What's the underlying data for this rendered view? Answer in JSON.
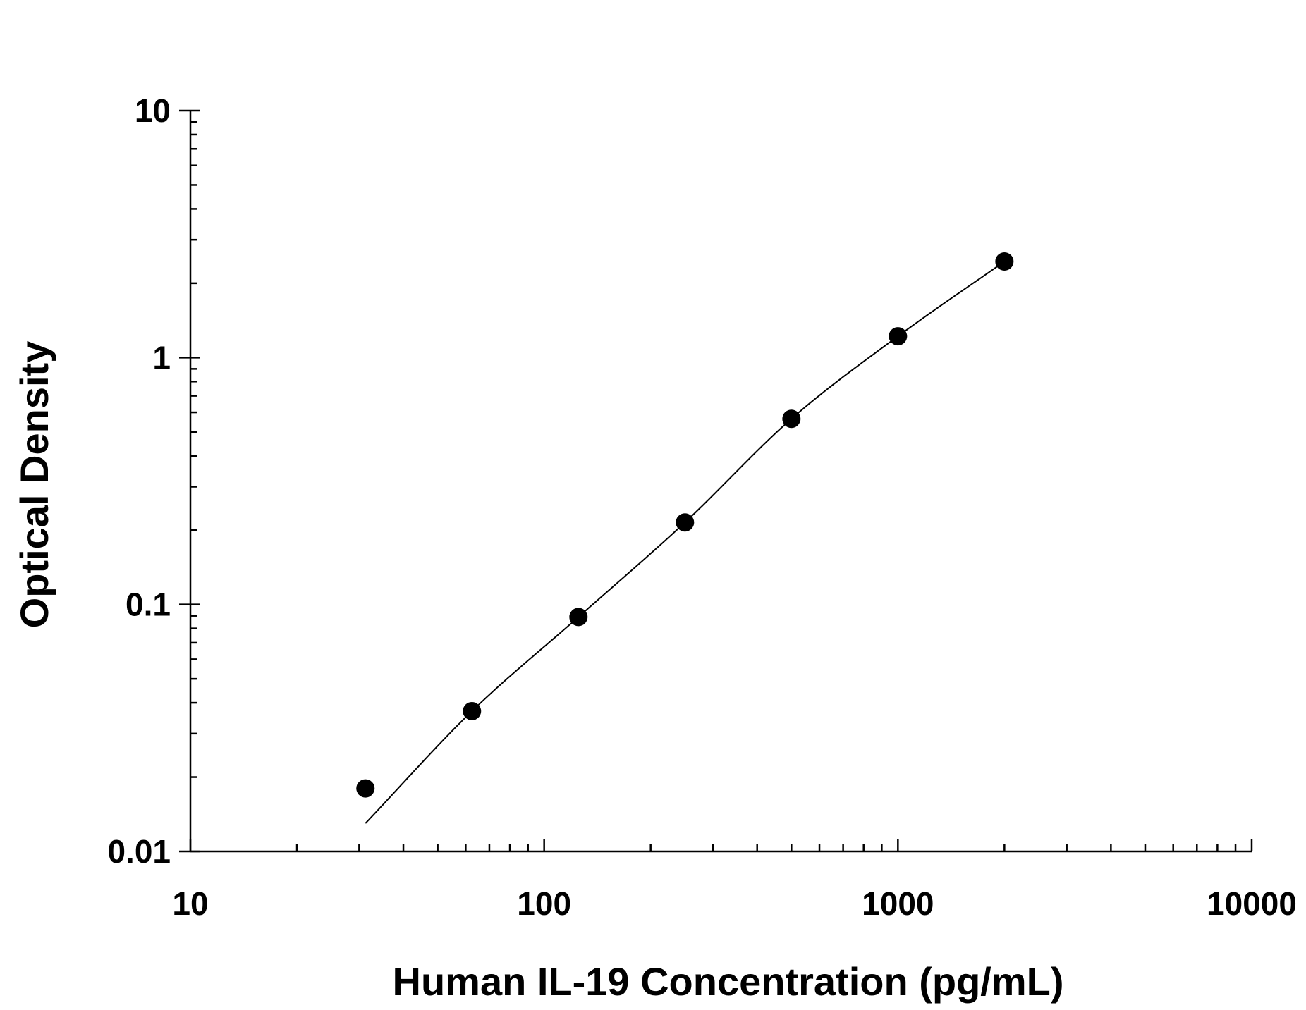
{
  "chart_data": {
    "type": "scatter",
    "title": "",
    "xlabel": "Human IL-19 Concentration (pg/mL)",
    "ylabel": "Optical Density",
    "xscale": "log",
    "yscale": "log",
    "xlim": [
      10,
      10000
    ],
    "ylim": [
      0.01,
      10
    ],
    "grid": false,
    "x_ticks": [
      10,
      100,
      1000,
      10000
    ],
    "y_ticks": [
      0.01,
      0.1,
      1,
      10
    ],
    "x_tick_labels": [
      "10",
      "100",
      "1000",
      "10000"
    ],
    "y_tick_labels": [
      "0.01",
      "0.1",
      "1",
      "10"
    ],
    "points": {
      "x": [
        31.25,
        62.5,
        125,
        250,
        500,
        1000,
        2000
      ],
      "y": [
        0.018,
        0.037,
        0.089,
        0.215,
        0.565,
        1.22,
        2.45
      ]
    },
    "fit_curve": {
      "x": [
        31.25,
        62.5,
        125,
        250,
        500,
        1000,
        2000
      ],
      "y": [
        0.013,
        0.037,
        0.089,
        0.215,
        0.565,
        1.22,
        2.45
      ]
    },
    "colors": {
      "points": "#000000",
      "curve": "#000000",
      "axis": "#000000"
    }
  }
}
